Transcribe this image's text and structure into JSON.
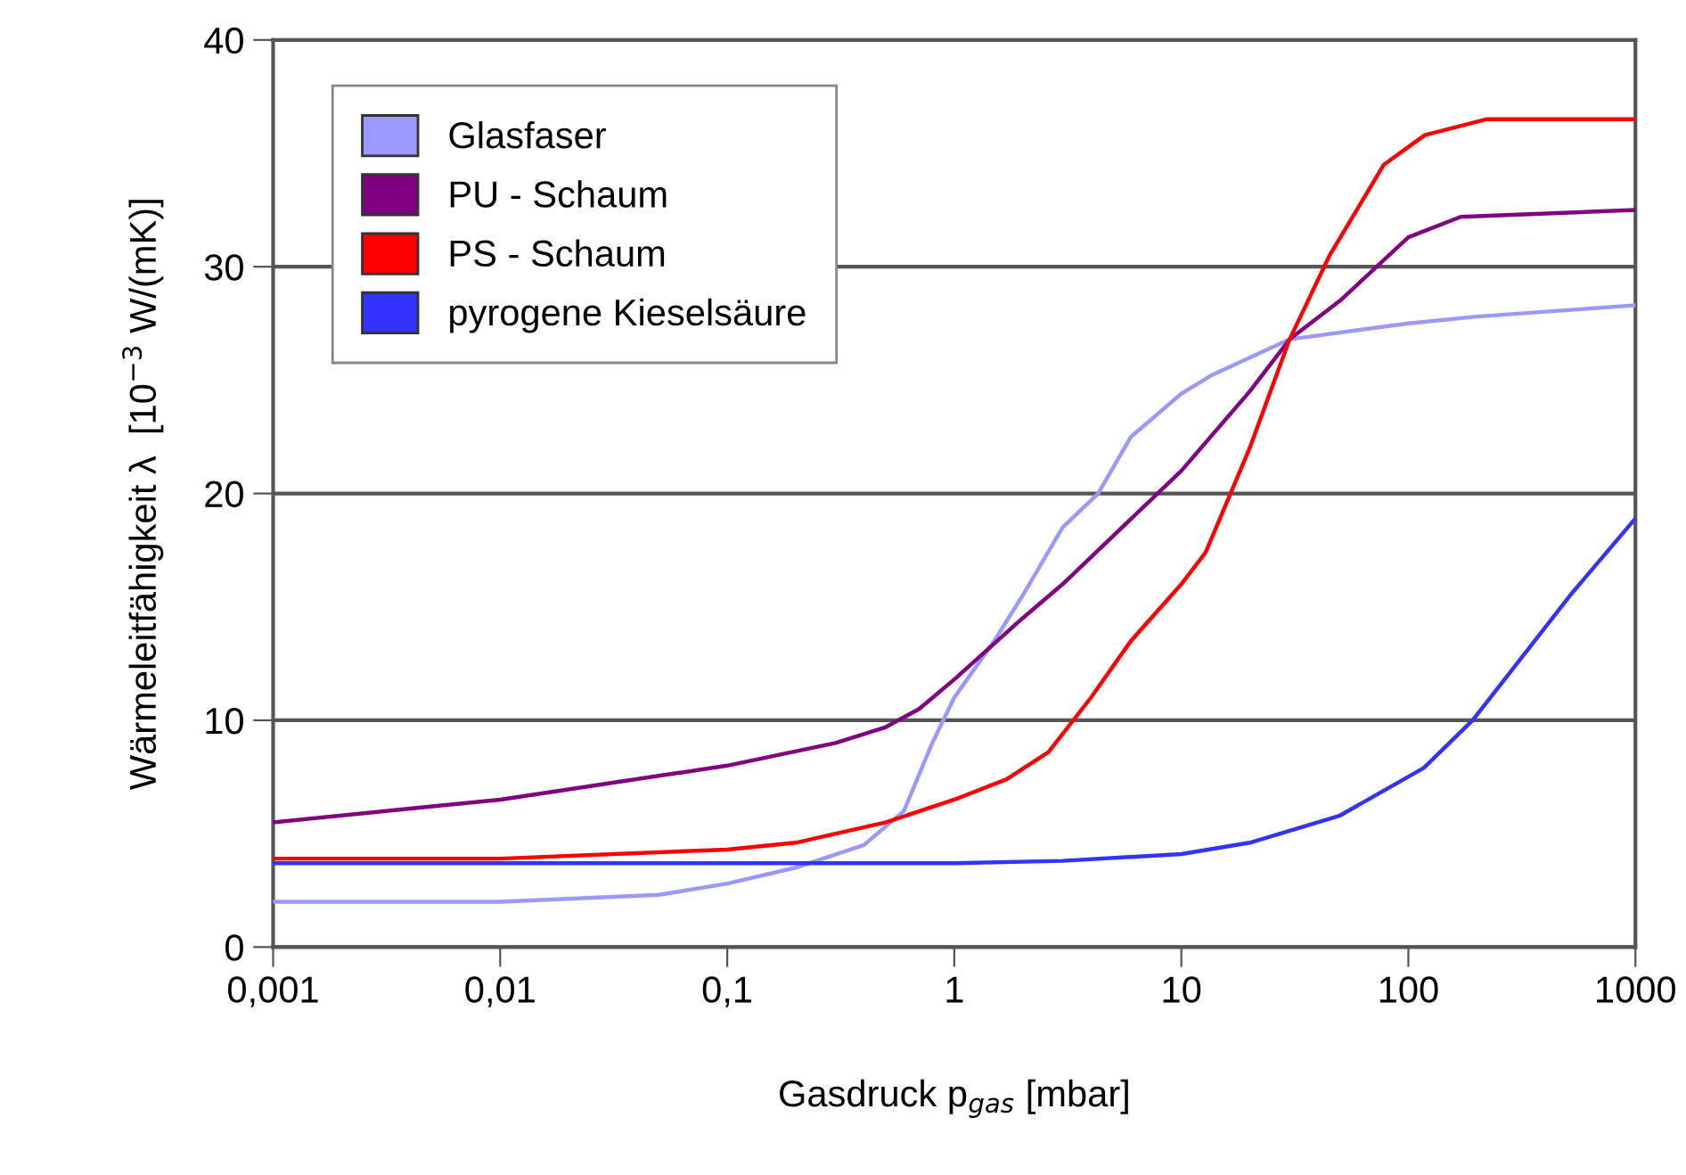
{
  "chart_data": {
    "type": "line",
    "xlabel": "Gasdruck p$_{gas}$ [mbar]",
    "ylabel": "Wärmeleitfähigkeit λ  [10$^{−3}$ W/(mK)]",
    "log": "x",
    "xlim": [
      0.001,
      1000
    ],
    "ylim": [
      0,
      40
    ],
    "xticks": [
      {
        "value": 0.001,
        "label": "0,001"
      },
      {
        "value": 0.01,
        "label": "0,01"
      },
      {
        "value": 0.1,
        "label": "0,1"
      },
      {
        "value": 1,
        "label": "1"
      },
      {
        "value": 10,
        "label": "10"
      },
      {
        "value": 100,
        "label": "100"
      },
      {
        "value": 1000,
        "label": "1000"
      }
    ],
    "yticks": [
      0,
      10,
      20,
      30,
      40
    ],
    "grid": "y",
    "legend": "top left",
    "marker": "none",
    "line_style": "solid",
    "series": [
      {
        "name": "Glasfaser",
        "color": "#9999ff",
        "x": [
          0.001,
          0.01,
          0.05,
          0.1,
          0.2,
          0.4,
          0.6,
          0.8,
          1,
          1.5,
          2,
          3,
          4.3,
          6,
          10,
          13.5,
          30,
          100,
          200,
          1000
        ],
        "values": [
          2.0,
          2.0,
          2.3,
          2.8,
          3.5,
          4.5,
          6.0,
          9.0,
          11.0,
          13.5,
          15.5,
          18.5,
          20.0,
          22.5,
          24.4,
          25.2,
          26.8,
          27.5,
          27.8,
          28.3
        ]
      },
      {
        "name": "PU - Schaum",
        "color": "#800080",
        "x": [
          0.001,
          0.01,
          0.1,
          0.3,
          0.5,
          0.7,
          1,
          2,
          3,
          10,
          20,
          30,
          50,
          100,
          170,
          1000
        ],
        "values": [
          5.5,
          6.5,
          8.0,
          9.0,
          9.7,
          10.5,
          11.8,
          14.5,
          16.0,
          21.0,
          24.5,
          26.8,
          28.5,
          31.3,
          32.2,
          32.5
        ]
      },
      {
        "name": "PS - Schaum",
        "color": "#ff0000",
        "x": [
          0.001,
          0.01,
          0.1,
          0.2,
          0.5,
          1,
          1.7,
          2.6,
          4,
          6,
          10,
          12.8,
          20,
          30,
          45,
          78,
          118,
          220,
          1000
        ],
        "values": [
          3.9,
          3.9,
          4.3,
          4.6,
          5.5,
          6.5,
          7.4,
          8.6,
          11.0,
          13.5,
          16.0,
          17.4,
          22.0,
          26.8,
          30.5,
          34.5,
          35.8,
          36.5,
          36.5
        ]
      },
      {
        "name": "pyrogene Kieselsäure",
        "color": "#3333ff",
        "x": [
          0.001,
          1,
          3,
          10,
          20,
          50,
          117,
          192,
          525,
          1000
        ],
        "values": [
          3.7,
          3.7,
          3.8,
          4.1,
          4.6,
          5.8,
          7.9,
          10.0,
          15.6,
          18.9
        ]
      }
    ]
  }
}
